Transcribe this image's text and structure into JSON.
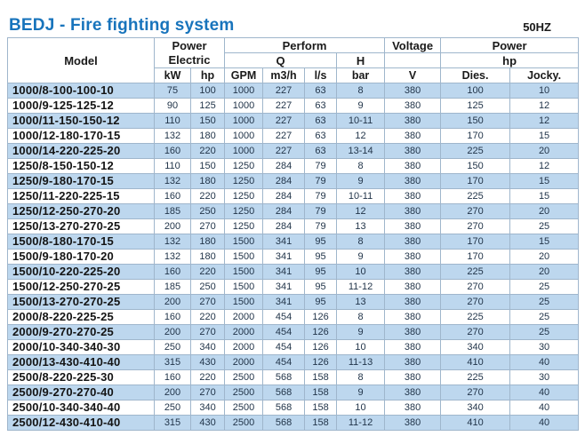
{
  "page": {
    "title": "BEDJ - Fire fighting system",
    "frequency": "50HZ"
  },
  "colors": {
    "title_blue": "#1874bc",
    "row_stripe_blue": "#bdd7ee",
    "row_stripe_white": "#ffffff",
    "table_border": "#9fb6cc",
    "value_text": "#22354a",
    "model_text": "#141414"
  },
  "table": {
    "header": {
      "model": "Model",
      "power_electric_line1": "Power",
      "power_electric_line2": "Electric",
      "perform": "Perform",
      "q": "Q",
      "h": "H",
      "voltage": "Voltage",
      "power": "Power",
      "hp": "hp",
      "units": [
        "kW",
        "hp",
        "GPM",
        "m3/h",
        "l/s",
        "bar",
        "V",
        "Dies.",
        "Jocky."
      ]
    },
    "rows": [
      [
        "1000/8-100-100-10",
        "75",
        "100",
        "1000",
        "227",
        "63",
        "8",
        "380",
        "100",
        "10"
      ],
      [
        "1000/9-125-125-12",
        "90",
        "125",
        "1000",
        "227",
        "63",
        "9",
        "380",
        "125",
        "12"
      ],
      [
        "1000/11-150-150-12",
        "110",
        "150",
        "1000",
        "227",
        "63",
        "10-11",
        "380",
        "150",
        "12"
      ],
      [
        "1000/12-180-170-15",
        "132",
        "180",
        "1000",
        "227",
        "63",
        "12",
        "380",
        "170",
        "15"
      ],
      [
        "1000/14-220-225-20",
        "160",
        "220",
        "1000",
        "227",
        "63",
        "13-14",
        "380",
        "225",
        "20"
      ],
      [
        "1250/8-150-150-12",
        "110",
        "150",
        "1250",
        "284",
        "79",
        "8",
        "380",
        "150",
        "12"
      ],
      [
        "1250/9-180-170-15",
        "132",
        "180",
        "1250",
        "284",
        "79",
        "9",
        "380",
        "170",
        "15"
      ],
      [
        "1250/11-220-225-15",
        "160",
        "220",
        "1250",
        "284",
        "79",
        "10-11",
        "380",
        "225",
        "15"
      ],
      [
        "1250/12-250-270-20",
        "185",
        "250",
        "1250",
        "284",
        "79",
        "12",
        "380",
        "270",
        "20"
      ],
      [
        "1250/13-270-270-25",
        "200",
        "270",
        "1250",
        "284",
        "79",
        "13",
        "380",
        "270",
        "25"
      ],
      [
        "1500/8-180-170-15",
        "132",
        "180",
        "1500",
        "341",
        "95",
        "8",
        "380",
        "170",
        "15"
      ],
      [
        "1500/9-180-170-20",
        "132",
        "180",
        "1500",
        "341",
        "95",
        "9",
        "380",
        "170",
        "20"
      ],
      [
        "1500/10-220-225-20",
        "160",
        "220",
        "1500",
        "341",
        "95",
        "10",
        "380",
        "225",
        "20"
      ],
      [
        "1500/12-250-270-25",
        "185",
        "250",
        "1500",
        "341",
        "95",
        "11-12",
        "380",
        "270",
        "25"
      ],
      [
        "1500/13-270-270-25",
        "200",
        "270",
        "1500",
        "341",
        "95",
        "13",
        "380",
        "270",
        "25"
      ],
      [
        "2000/8-220-225-25",
        "160",
        "220",
        "2000",
        "454",
        "126",
        "8",
        "380",
        "225",
        "25"
      ],
      [
        "2000/9-270-270-25",
        "200",
        "270",
        "2000",
        "454",
        "126",
        "9",
        "380",
        "270",
        "25"
      ],
      [
        "2000/10-340-340-30",
        "250",
        "340",
        "2000",
        "454",
        "126",
        "10",
        "380",
        "340",
        "30"
      ],
      [
        "2000/13-430-410-40",
        "315",
        "430",
        "2000",
        "454",
        "126",
        "11-13",
        "380",
        "410",
        "40"
      ],
      [
        "2500/8-220-225-30",
        "160",
        "220",
        "2500",
        "568",
        "158",
        "8",
        "380",
        "225",
        "30"
      ],
      [
        "2500/9-270-270-40",
        "200",
        "270",
        "2500",
        "568",
        "158",
        "9",
        "380",
        "270",
        "40"
      ],
      [
        "2500/10-340-340-40",
        "250",
        "340",
        "2500",
        "568",
        "158",
        "10",
        "380",
        "340",
        "40"
      ],
      [
        "2500/12-430-410-40",
        "315",
        "430",
        "2500",
        "568",
        "158",
        "11-12",
        "380",
        "410",
        "40"
      ]
    ]
  }
}
